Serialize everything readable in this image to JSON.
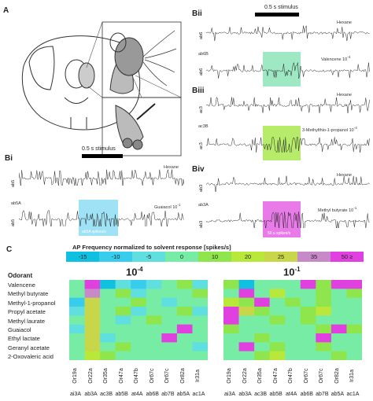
{
  "panels": {
    "A": "A",
    "Bi": "Bi",
    "Bii": "Bii",
    "Biii": "Biii",
    "Biv": "Biv",
    "C": "C"
  },
  "stimulus": "0.5 s stimulus",
  "bii": {
    "top_label": "Hexane",
    "top_sensillum": "ab6",
    "neuron": "ab6B",
    "bottom_label": "Valencene 10",
    "bottom_label_exp": "-4",
    "bottom_sensillum": "ab6",
    "highlight_color": "#7fe0b0"
  },
  "biii": {
    "top_label": "Hexane",
    "top_sensillum": "ac3",
    "neuron": "ac3B",
    "bottom_label": "3-Methylthio-1-propanol 10",
    "bottom_label_exp": "-4",
    "bottom_sensillum": "ac3",
    "highlight_color": "#9fe63a"
  },
  "bi": {
    "top_label": "Hexane",
    "top_sensillum": "ab5",
    "neuron": "ab5A",
    "bottom_label": "Guaiacol 10",
    "bottom_label_exp": "-1",
    "bottom_sensillum": "ab5",
    "highlight_color": "#7fd8f2",
    "highlight_text": "ab5A spikes/s"
  },
  "biv": {
    "top_label": "Hexane",
    "top_sensillum": "ab3",
    "neuron": "ab3A",
    "bottom_label": "Methyl butyrate 10",
    "bottom_label_exp": "-1",
    "bottom_sensillum": "ab3",
    "highlight_color": "#e04fe0",
    "highlight_text": "50 ≥ spikes/s"
  },
  "heatmap": {
    "title": "AP Frequency normalized to solvent response [spikes/s]",
    "legend": [
      {
        "label": "-15",
        "color": "#0fc0e0"
      },
      {
        "label": "-10",
        "color": "#38cdec"
      },
      {
        "label": "-5",
        "color": "#5fdfe0"
      },
      {
        "label": "0",
        "color": "#77eca4"
      },
      {
        "label": "10",
        "color": "#8ee64c"
      },
      {
        "label": "20",
        "color": "#b7e83a"
      },
      {
        "label": "25",
        "color": "#c8d64a"
      },
      {
        "label": "35",
        "color": "#c889c8"
      },
      {
        "label": "50 ≥",
        "color": "#e040e0"
      }
    ],
    "odorant_header": "Odorant",
    "odorants": [
      "Valencene",
      "Methyl butyrate",
      "Methyl-1-propanol",
      "Propyl acetate",
      "Methyl laurate",
      "Guaiacol",
      "Ethyl lactate",
      "Geranyl acetate",
      "2-Oxovaleric acid"
    ],
    "receptors": [
      "Or19a",
      "Or22a",
      "Or35a",
      "Or47a",
      "Or47b",
      "Or67c",
      "Or67c",
      "Or82a",
      "Ir31a"
    ],
    "neurons": [
      "ai3A",
      "ab3A",
      "ac3B",
      "ab5B",
      "at4A",
      "ab6B",
      "ab7B",
      "ab5A",
      "ac1A"
    ],
    "left_title": "10",
    "left_title_exp": "-4",
    "right_title": "10",
    "right_title_exp": "-1",
    "left_matrix": [
      [
        0,
        50,
        -15,
        -5,
        -10,
        -5,
        0,
        10,
        -5
      ],
      [
        5,
        35,
        0,
        10,
        -5,
        0,
        5,
        0,
        10
      ],
      [
        -10,
        25,
        0,
        5,
        10,
        0,
        -5,
        0,
        0
      ],
      [
        -5,
        25,
        0,
        10,
        -5,
        5,
        0,
        10,
        -5
      ],
      [
        0,
        25,
        5,
        -5,
        5,
        10,
        0,
        0,
        5
      ],
      [
        -5,
        25,
        0,
        0,
        5,
        0,
        0,
        50,
        0
      ],
      [
        0,
        25,
        -5,
        5,
        0,
        5,
        50,
        0,
        0
      ],
      [
        5,
        25,
        0,
        10,
        5,
        0,
        5,
        0,
        -5
      ],
      [
        0,
        20,
        10,
        0,
        5,
        0,
        5,
        0,
        5
      ]
    ],
    "right_matrix": [
      [
        10,
        -15,
        5,
        5,
        0,
        50,
        10,
        50,
        50
      ],
      [
        5,
        50,
        0,
        20,
        0,
        5,
        10,
        0,
        10
      ],
      [
        20,
        10,
        50,
        5,
        10,
        0,
        10,
        5,
        0
      ],
      [
        50,
        25,
        10,
        5,
        0,
        10,
        20,
        0,
        5
      ],
      [
        50,
        5,
        0,
        10,
        5,
        10,
        0,
        5,
        0
      ],
      [
        10,
        5,
        0,
        5,
        5,
        0,
        10,
        50,
        10
      ],
      [
        0,
        5,
        10,
        0,
        5,
        0,
        50,
        0,
        5
      ],
      [
        5,
        50,
        0,
        10,
        5,
        0,
        10,
        0,
        5
      ],
      [
        0,
        5,
        10,
        20,
        0,
        5,
        0,
        10,
        5
      ]
    ]
  }
}
